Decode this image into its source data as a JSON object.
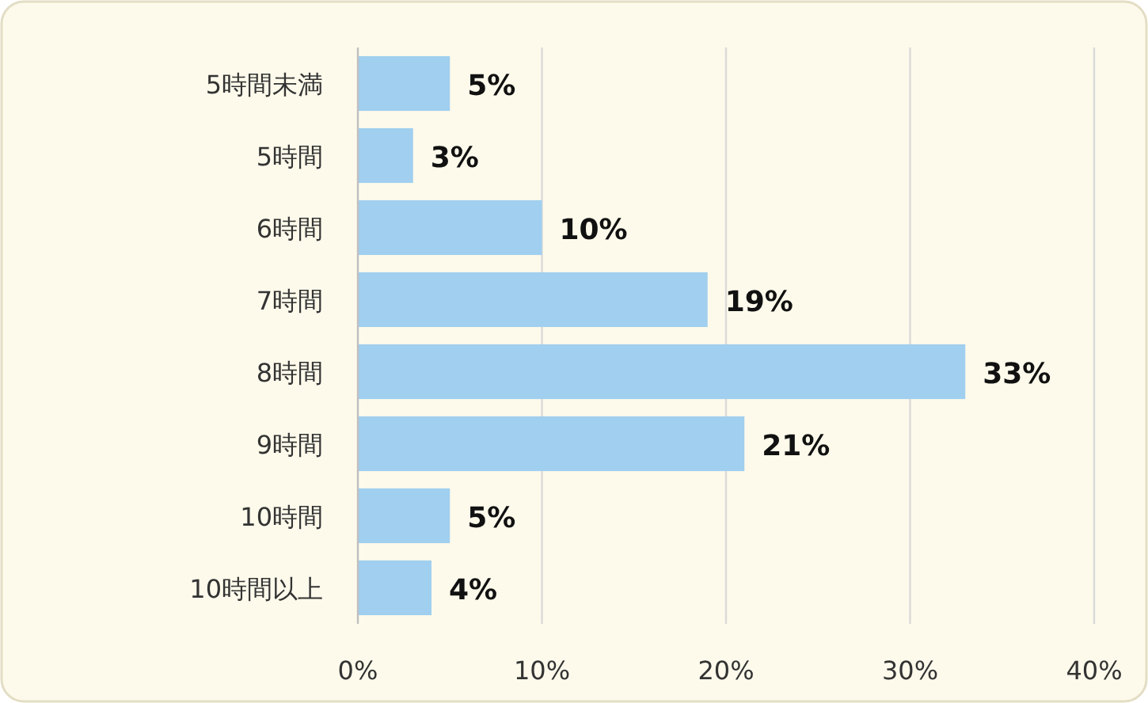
{
  "chart_data": {
    "type": "bar",
    "orientation": "horizontal",
    "categories": [
      "5時間未満",
      "5時間",
      "6時間",
      "7時間",
      "8時間",
      "9時間",
      "10時間",
      "10時間以上"
    ],
    "values": [
      5,
      3,
      10,
      19,
      33,
      21,
      5,
      4
    ],
    "value_labels": [
      "5%",
      "3%",
      "10%",
      "19%",
      "33%",
      "21%",
      "5%",
      "4%"
    ],
    "color": "#a0cfef",
    "xlim": [
      0,
      40
    ],
    "xticks": [
      {
        "value": 0,
        "label": "0%"
      },
      {
        "value": 10,
        "label": "10%"
      },
      {
        "value": 20,
        "label": "20%"
      },
      {
        "value": 30,
        "label": "30%"
      },
      {
        "value": 40,
        "label": "40%"
      }
    ],
    "grid": "x"
  }
}
